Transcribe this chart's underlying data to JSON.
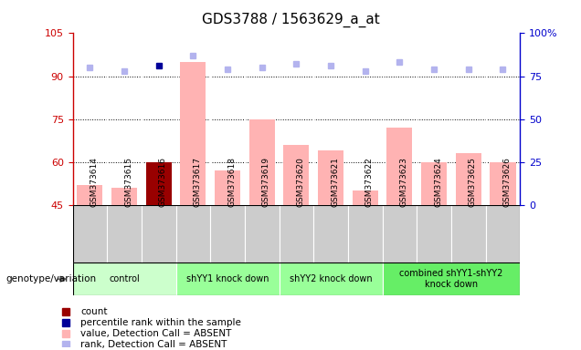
{
  "title": "GDS3788 / 1563629_a_at",
  "samples": [
    "GSM373614",
    "GSM373615",
    "GSM373616",
    "GSM373617",
    "GSM373618",
    "GSM373619",
    "GSM373620",
    "GSM373621",
    "GSM373622",
    "GSM373623",
    "GSM373624",
    "GSM373625",
    "GSM373626"
  ],
  "bar_values": [
    52,
    51,
    60,
    95,
    57,
    75,
    66,
    64,
    50,
    72,
    60,
    63,
    60
  ],
  "bar_colors": [
    "#ffb3b3",
    "#ffb3b3",
    "#990000",
    "#ffb3b3",
    "#ffb3b3",
    "#ffb3b3",
    "#ffb3b3",
    "#ffb3b3",
    "#ffb3b3",
    "#ffb3b3",
    "#ffb3b3",
    "#ffb3b3",
    "#ffb3b3"
  ],
  "rank_values": [
    80,
    78,
    81,
    87,
    79,
    80,
    82,
    81,
    78,
    83,
    79,
    79,
    79
  ],
  "rank_colors": [
    "#b3b3ee",
    "#b3b3ee",
    "#000099",
    "#b3b3ee",
    "#b3b3ee",
    "#b3b3ee",
    "#b3b3ee",
    "#b3b3ee",
    "#b3b3ee",
    "#b3b3ee",
    "#b3b3ee",
    "#b3b3ee",
    "#b3b3ee"
  ],
  "ylim_left": [
    45,
    105
  ],
  "ylim_right": [
    0,
    100
  ],
  "yticks_left": [
    45,
    60,
    75,
    90,
    105
  ],
  "yticks_right": [
    0,
    25,
    50,
    75,
    100
  ],
  "ytick_labels_left": [
    "45",
    "60",
    "75",
    "90",
    "105"
  ],
  "ytick_labels_right": [
    "0",
    "25",
    "50",
    "75",
    "100%"
  ],
  "grid_yticks": [
    60,
    75,
    90
  ],
  "groups": [
    {
      "label": "control",
      "start": 0,
      "end": 2,
      "color": "#ccffcc"
    },
    {
      "label": "shYY1 knock down",
      "start": 3,
      "end": 5,
      "color": "#99ff99"
    },
    {
      "label": "shYY2 knock down",
      "start": 6,
      "end": 8,
      "color": "#99ff99"
    },
    {
      "label": "combined shYY1-shYY2\nknock down",
      "start": 9,
      "end": 12,
      "color": "#66ee66"
    }
  ],
  "legend_items": [
    {
      "label": "count",
      "color": "#990000"
    },
    {
      "label": "percentile rank within the sample",
      "color": "#000099"
    },
    {
      "label": "value, Detection Call = ABSENT",
      "color": "#ffb3b3"
    },
    {
      "label": "rank, Detection Call = ABSENT",
      "color": "#b3b3ee"
    }
  ],
  "genotype_label": "genotype/variation",
  "left_color": "#cc0000",
  "right_color": "#0000cc",
  "grid_color": "#000000",
  "sample_bg_color": "#cccccc",
  "plot_bg_color": "#ffffff"
}
